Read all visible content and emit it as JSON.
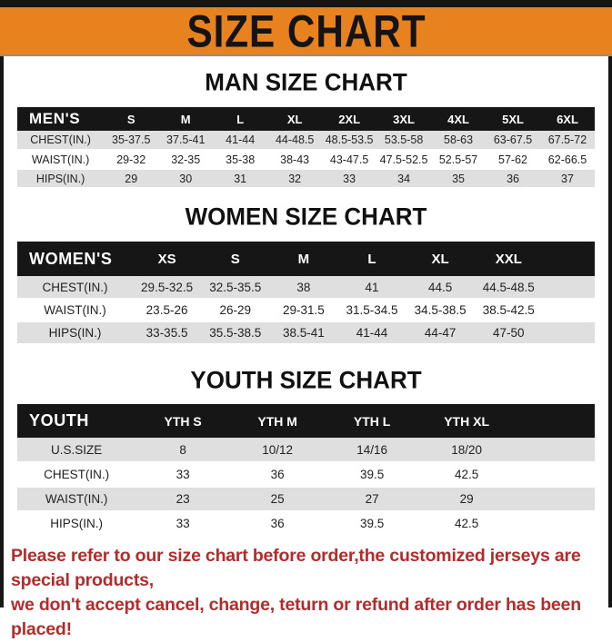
{
  "banner": {
    "title": "SIZE CHART"
  },
  "colors": {
    "accent_orange": "#E8821E",
    "bar_black": "#161616",
    "stripe_gray": "#DFDFDF",
    "note_red": "#B22C2C"
  },
  "sections": [
    {
      "heading": "MAN SIZE CHART",
      "table": {
        "header": [
          "MEN'S",
          "S",
          "M",
          "L",
          "XL",
          "2XL",
          "3XL",
          "4XL",
          "5XL",
          "6XL"
        ],
        "rows": [
          {
            "label": "CHEST(IN.)",
            "values": [
              "35-37.5",
              "37.5-41",
              "41-44",
              "44-48.5",
              "48.5-53.5",
              "53.5-58",
              "58-63",
              "63-67.5",
              "67.5-72"
            ]
          },
          {
            "label": "WAIST(IN.)",
            "values": [
              "29-32",
              "32-35",
              "35-38",
              "38-43",
              "43-47.5",
              "47.5-52.5",
              "52.5-57",
              "57-62",
              "62-66.5"
            ]
          },
          {
            "label": "HIPS(IN.)",
            "values": [
              "29",
              "30",
              "31",
              "32",
              "33",
              "34",
              "35",
              "36",
              "37"
            ]
          }
        ]
      }
    },
    {
      "heading": "WOMEN SIZE CHART",
      "table": {
        "header": [
          "WOMEN'S",
          "XS",
          "S",
          "M",
          "L",
          "XL",
          "XXL"
        ],
        "rows": [
          {
            "label": "CHEST(IN.)",
            "values": [
              "29.5-32.5",
              "32.5-35.5",
              "38",
              "41",
              "44.5",
              "44.5-48.5"
            ]
          },
          {
            "label": "WAIST(IN.)",
            "values": [
              "23.5-26",
              "26-29",
              "29-31.5",
              "31.5-34.5",
              "34.5-38.5",
              "38.5-42.5"
            ]
          },
          {
            "label": "HIPS(IN.)",
            "values": [
              "33-35.5",
              "35.5-38.5",
              "38.5-41",
              "41-44",
              "44-47",
              "47-50"
            ]
          }
        ]
      }
    },
    {
      "heading": "YOUTH SIZE CHART",
      "table": {
        "header": [
          "YOUTH",
          "YTH S",
          "YTH M",
          "YTH L",
          "YTH XL"
        ],
        "rows": [
          {
            "label": "U.S.SIZE",
            "values": [
              "8",
              "10/12",
              "14/16",
              "18/20"
            ]
          },
          {
            "label": "CHEST(IN.)",
            "values": [
              "33",
              "36",
              "39.5",
              "42.5"
            ]
          },
          {
            "label": "WAIST(IN.)",
            "values": [
              "23",
              "25",
              "27",
              "29"
            ]
          },
          {
            "label": "HIPS(IN.)",
            "values": [
              "33",
              "36",
              "39.5",
              "42.5"
            ]
          }
        ]
      }
    }
  ],
  "footer": {
    "line1": "Please refer to our size chart before order,the customized jerseys are special products,",
    "line2": "we don't accept cancel, change, teturn or refund after order has been placed!"
  }
}
